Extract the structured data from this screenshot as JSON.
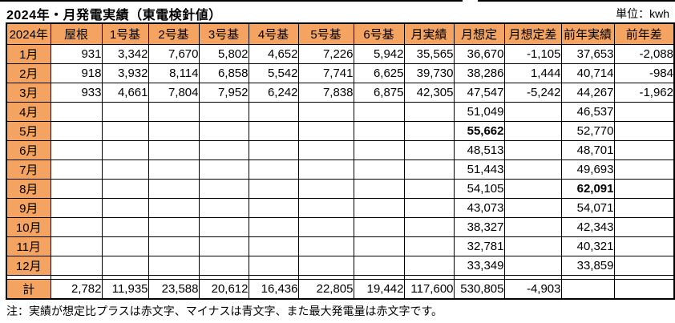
{
  "title": "2024年・月発電実績（東電検針値）",
  "unit_label": "単位：kwh",
  "note": "注：実績が想定比プラスは赤文字、マイナスは青文字、また最大発電量は赤文字です。",
  "colors": {
    "header_bg": "#F4A460",
    "plus_text": "#FF0000",
    "minus_text": "#0000FF",
    "grid": "#000000"
  },
  "table": {
    "columns": [
      "2024年",
      "屋根",
      "1号基",
      "2号基",
      "3号基",
      "4号基",
      "5号基",
      "6号基",
      "月実績",
      "月想定",
      "月想定差",
      "前年実績",
      "前年差"
    ],
    "rows": [
      {
        "label": "1月",
        "cells": [
          "931",
          "3,342",
          {
            "v": "7,670",
            "s": "red"
          },
          "5,802",
          "4,652",
          "7,226",
          "5,942",
          {
            "v": "35,565",
            "s": "blue"
          },
          "36,670",
          {
            "v": "-1,105",
            "s": "blue"
          },
          "37,653",
          {
            "v": "-2,088",
            "s": "blue"
          }
        ]
      },
      {
        "label": "2月",
        "cells": [
          "918",
          "3,932",
          {
            "v": "8,114",
            "s": "red"
          },
          "6,858",
          "5,542",
          "7,741",
          "6,625",
          {
            "v": "39,730",
            "s": "red"
          },
          "38,286",
          {
            "v": "1,444",
            "s": "red"
          },
          "40,714",
          {
            "v": "-984",
            "s": "blue"
          }
        ]
      },
      {
        "label": "3月",
        "cells": [
          "933",
          "4,661",
          "7,804",
          {
            "v": "7,952",
            "s": "red"
          },
          "6,242",
          "7,838",
          "6,875",
          {
            "v": "42,305",
            "s": "blue"
          },
          "47,547",
          {
            "v": "-5,242",
            "s": "blue"
          },
          "44,267",
          {
            "v": "-1,962",
            "s": "blue"
          }
        ]
      },
      {
        "label": "4月",
        "cells": [
          "",
          "",
          "",
          "",
          "",
          "",
          "",
          "",
          "51,049",
          "",
          "46,537",
          ""
        ]
      },
      {
        "label": "5月",
        "cells": [
          "",
          "",
          "",
          "",
          "",
          "",
          "",
          "",
          {
            "v": "55,662",
            "s": "bold"
          },
          "",
          "52,770",
          ""
        ]
      },
      {
        "label": "6月",
        "cells": [
          "",
          "",
          "",
          "",
          "",
          "",
          "",
          "",
          "48,513",
          "",
          "48,701",
          ""
        ]
      },
      {
        "label": "7月",
        "cells": [
          "",
          "",
          "",
          "",
          "",
          "",
          "",
          "",
          "51,443",
          "",
          "49,693",
          ""
        ]
      },
      {
        "label": "8月",
        "cells": [
          "",
          "",
          "",
          "",
          "",
          "",
          "",
          "",
          "54,105",
          "",
          {
            "v": "62,091",
            "s": "bold"
          },
          ""
        ]
      },
      {
        "label": "9月",
        "cells": [
          "",
          "",
          "",
          "",
          "",
          "",
          "",
          "",
          "43,073",
          "",
          "54,071",
          ""
        ]
      },
      {
        "label": "10月",
        "cells": [
          "",
          "",
          "",
          "",
          "",
          "",
          "",
          "",
          "38,327",
          "",
          "42,343",
          ""
        ]
      },
      {
        "label": "11月",
        "cells": [
          "",
          "",
          "",
          "",
          "",
          "",
          "",
          "",
          "32,781",
          "",
          "40,321",
          ""
        ]
      },
      {
        "label": "12月",
        "cells": [
          "",
          "",
          "",
          "",
          "",
          "",
          "",
          "",
          "33,349",
          "",
          "33,859",
          ""
        ]
      }
    ],
    "total": {
      "label": "計",
      "cells": [
        "2,782",
        "11,935",
        "23,588",
        "20,612",
        "16,436",
        "22,805",
        "19,442",
        "117,600",
        "530,805",
        {
          "v": "-4,903",
          "s": "blue"
        },
        "",
        ""
      ]
    }
  }
}
